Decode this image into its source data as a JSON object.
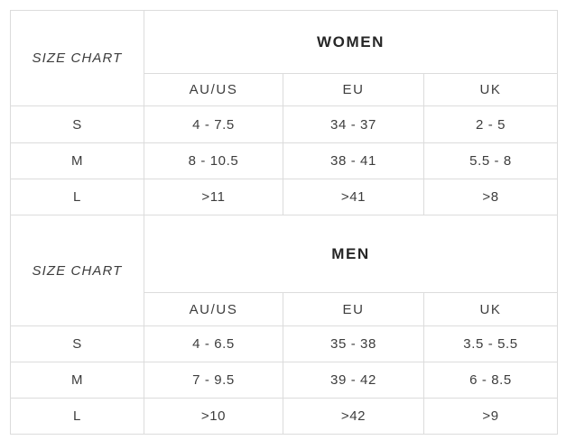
{
  "size_chart_label": "SIZE CHART",
  "columns": [
    "AU/US",
    "EU",
    "UK"
  ],
  "tables": [
    {
      "title": "WOMEN",
      "rows": [
        {
          "size": "S",
          "values": [
            "4 - 7.5",
            "34 - 37",
            "2 - 5"
          ]
        },
        {
          "size": "M",
          "values": [
            "8 - 10.5",
            "38 - 41",
            "5.5 - 8"
          ]
        },
        {
          "size": "L",
          "values": [
            ">11",
            ">41",
            ">8"
          ]
        }
      ]
    },
    {
      "title": "MEN",
      "rows": [
        {
          "size": "S",
          "values": [
            "4 - 6.5",
            "35 - 38",
            "3.5 - 5.5"
          ]
        },
        {
          "size": "M",
          "values": [
            "7 - 9.5",
            "39 - 42",
            "6 - 8.5"
          ]
        },
        {
          "size": "L",
          "values": [
            ">10",
            ">42",
            ">9"
          ]
        }
      ]
    }
  ],
  "colors": {
    "background": "#ffffff",
    "border": "#dcdcdc",
    "title_text": "#262626",
    "body_text": "#3d3d3d"
  }
}
